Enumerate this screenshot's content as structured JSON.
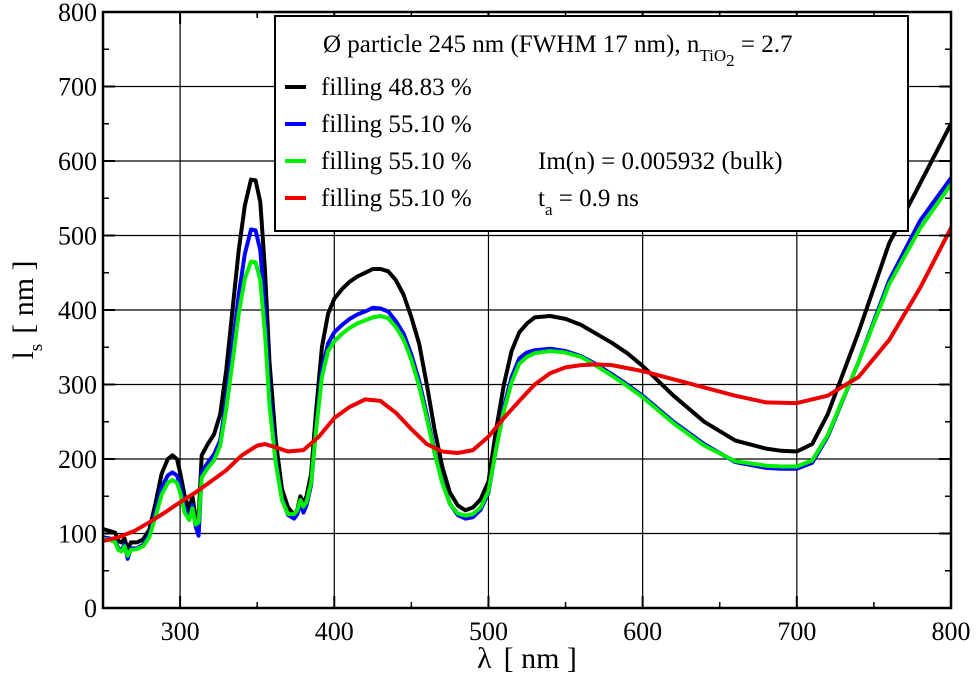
{
  "chart_data": {
    "type": "line",
    "xlabel": {
      "main": "λ",
      "unit": "[ nm ]"
    },
    "ylabel": {
      "main": "l",
      "sub": "s",
      "unit": "[ nm ]"
    },
    "xlim": [
      250,
      800
    ],
    "ylim": [
      0,
      800
    ],
    "xticks": [
      300,
      400,
      500,
      600,
      700,
      800
    ],
    "yticks": [
      0,
      100,
      200,
      300,
      400,
      500,
      600,
      700,
      800
    ],
    "grid": true,
    "legend": {
      "position": "top-right",
      "title": {
        "pre": "Ø particle 245 nm (FWHM 17 nm), n",
        "sub": "TiO",
        "subsub": "2",
        "post": " = 2.7"
      }
    },
    "series": [
      {
        "name": "filling 48.83 %",
        "label": {
          "main": "filling  48.83 %",
          "extra_pre": "",
          "extra_sub": "",
          "extra_post": ""
        },
        "color": "#000000",
        "x": [
          250,
          255,
          258,
          260,
          262,
          264,
          266,
          268,
          272,
          276,
          280,
          284,
          288,
          292,
          295,
          298,
          300,
          303,
          306,
          308,
          310,
          312,
          314,
          318,
          322,
          326,
          330,
          334,
          338,
          342,
          346,
          349,
          352,
          355,
          358,
          362,
          366,
          370,
          374,
          376,
          378,
          380,
          382,
          385,
          388,
          392,
          396,
          400,
          405,
          410,
          415,
          420,
          425,
          430,
          435,
          440,
          445,
          450,
          455,
          460,
          465,
          470,
          475,
          480,
          485,
          490,
          495,
          500,
          505,
          510,
          515,
          520,
          525,
          530,
          540,
          550,
          560,
          570,
          580,
          590,
          600,
          620,
          640,
          660,
          680,
          690,
          700,
          710,
          720,
          740,
          760,
          780,
          800
        ],
        "y": [
          106,
          103,
          101,
          90,
          88,
          93,
          78,
          88,
          88,
          92,
          105,
          140,
          180,
          200,
          205,
          200,
          182,
          150,
          132,
          150,
          122,
          120,
          205,
          220,
          233,
          260,
          320,
          400,
          480,
          540,
          575,
          574,
          545,
          455,
          330,
          225,
          160,
          135,
          125,
          132,
          150,
          140,
          150,
          180,
          260,
          350,
          395,
          415,
          428,
          438,
          445,
          450,
          455,
          455,
          452,
          440,
          420,
          390,
          355,
          300,
          240,
          190,
          155,
          138,
          131,
          135,
          146,
          170,
          240,
          300,
          345,
          370,
          382,
          390,
          392,
          388,
          380,
          368,
          356,
          342,
          325,
          285,
          250,
          225,
          214,
          211,
          210,
          220,
          260,
          370,
          490,
          570,
          650
        ]
      },
      {
        "name": "filling 55.10 %",
        "label": {
          "main": "filling  55.10 %",
          "extra_pre": "",
          "extra_sub": "",
          "extra_post": ""
        },
        "color": "#0000ff",
        "x": [
          250,
          255,
          258,
          260,
          262,
          264,
          266,
          268,
          272,
          276,
          280,
          284,
          288,
          292,
          295,
          298,
          300,
          303,
          306,
          308,
          310,
          312,
          314,
          318,
          322,
          326,
          330,
          334,
          338,
          342,
          346,
          349,
          352,
          355,
          358,
          362,
          366,
          370,
          374,
          376,
          378,
          380,
          382,
          385,
          388,
          392,
          396,
          400,
          405,
          410,
          415,
          420,
          425,
          430,
          435,
          440,
          445,
          450,
          455,
          460,
          465,
          470,
          475,
          480,
          485,
          490,
          495,
          500,
          505,
          510,
          515,
          520,
          525,
          530,
          540,
          550,
          560,
          570,
          580,
          590,
          600,
          620,
          640,
          660,
          680,
          690,
          700,
          710,
          720,
          740,
          760,
          780,
          800
        ],
        "y": [
          95,
          93,
          90,
          80,
          78,
          85,
          66,
          80,
          80,
          85,
          98,
          128,
          162,
          178,
          182,
          178,
          165,
          135,
          120,
          138,
          110,
          97,
          183,
          195,
          206,
          225,
          280,
          350,
          420,
          475,
          508,
          507,
          480,
          400,
          290,
          200,
          148,
          125,
          120,
          126,
          140,
          128,
          138,
          165,
          238,
          320,
          355,
          370,
          380,
          388,
          394,
          398,
          403,
          402,
          398,
          385,
          368,
          340,
          305,
          260,
          210,
          170,
          140,
          125,
          120,
          122,
          132,
          155,
          215,
          270,
          310,
          335,
          343,
          346,
          348,
          345,
          338,
          327,
          314,
          300,
          285,
          250,
          220,
          196,
          188,
          187,
          187,
          195,
          230,
          330,
          440,
          520,
          577
        ]
      },
      {
        "name": "filling 55.10 % Im(n) = 0.005932 (bulk)",
        "label": {
          "main": "filling  55.10 %",
          "extra_pre": "Im(n) = 0.005932 (bulk)",
          "extra_sub": "",
          "extra_post": ""
        },
        "color": "#00ee00",
        "x": [
          250,
          255,
          258,
          260,
          262,
          264,
          266,
          268,
          272,
          276,
          280,
          284,
          288,
          292,
          295,
          298,
          300,
          303,
          306,
          308,
          310,
          312,
          314,
          318,
          322,
          326,
          330,
          334,
          338,
          342,
          346,
          349,
          352,
          355,
          358,
          362,
          366,
          370,
          374,
          376,
          378,
          380,
          382,
          385,
          388,
          392,
          396,
          400,
          405,
          410,
          415,
          420,
          425,
          430,
          435,
          440,
          445,
          450,
          455,
          460,
          465,
          470,
          475,
          480,
          485,
          490,
          495,
          500,
          505,
          510,
          515,
          520,
          525,
          530,
          540,
          550,
          560,
          570,
          580,
          590,
          600,
          620,
          640,
          660,
          680,
          690,
          700,
          710,
          720,
          740,
          760,
          780,
          800
        ],
        "y": [
          93,
          91,
          88,
          78,
          76,
          83,
          70,
          78,
          79,
          83,
          95,
          122,
          152,
          168,
          172,
          168,
          155,
          128,
          118,
          134,
          112,
          115,
          175,
          188,
          198,
          218,
          268,
          330,
          395,
          442,
          465,
          464,
          440,
          370,
          272,
          195,
          145,
          126,
          126,
          131,
          145,
          136,
          142,
          168,
          235,
          310,
          345,
          358,
          368,
          376,
          382,
          386,
          390,
          392,
          389,
          377,
          360,
          333,
          298,
          255,
          208,
          168,
          140,
          127,
          124,
          126,
          135,
          157,
          214,
          265,
          303,
          328,
          337,
          342,
          345,
          343,
          337,
          325,
          312,
          298,
          283,
          248,
          218,
          197,
          191,
          190,
          190,
          198,
          232,
          330,
          435,
          510,
          569
        ]
      },
      {
        "name": "filling 55.10 % t_a = 0.9 ns",
        "label": {
          "main": "filling  55.10 %",
          "extra_pre": "t",
          "extra_sub": "a",
          "extra_post": " = 0.9 ns"
        },
        "color": "#ee0000",
        "x": [
          250,
          260,
          270,
          280,
          290,
          300,
          310,
          320,
          330,
          340,
          350,
          355,
          360,
          370,
          380,
          390,
          400,
          410,
          420,
          430,
          440,
          450,
          460,
          470,
          480,
          490,
          500,
          510,
          520,
          530,
          540,
          550,
          560,
          570,
          580,
          600,
          620,
          640,
          660,
          680,
          700,
          720,
          740,
          760,
          780,
          800
        ],
        "y": [
          90,
          95,
          103,
          115,
          128,
          142,
          155,
          170,
          185,
          205,
          218,
          220,
          217,
          210,
          212,
          230,
          255,
          270,
          280,
          278,
          262,
          240,
          220,
          210,
          208,
          212,
          230,
          255,
          278,
          300,
          315,
          323,
          326,
          327,
          326,
          318,
          307,
          296,
          285,
          276,
          275,
          285,
          310,
          360,
          430,
          510
        ]
      }
    ]
  }
}
